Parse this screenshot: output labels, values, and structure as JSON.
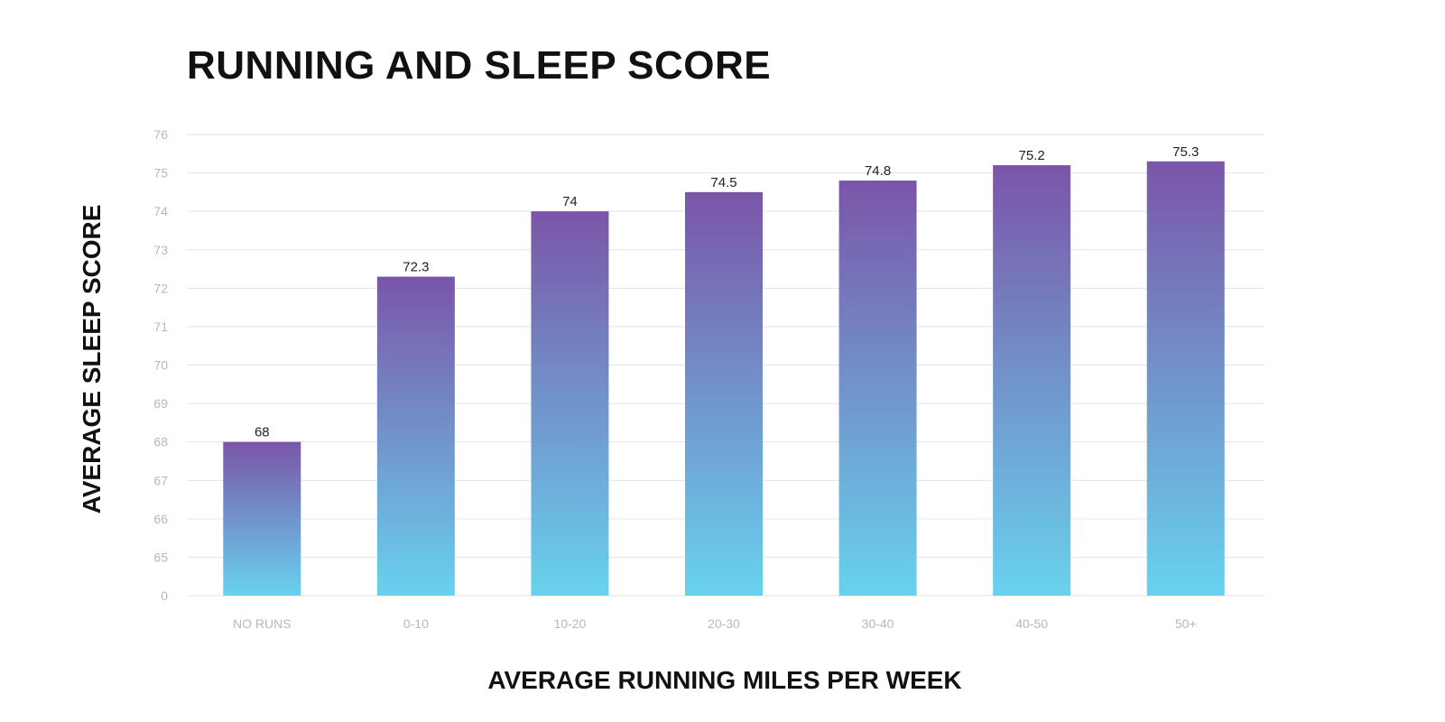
{
  "chart_data": {
    "type": "bar",
    "title": "RUNNING AND SLEEP SCORE",
    "xlabel": "AVERAGE RUNNING MILES PER WEEK",
    "ylabel": "AVERAGE SLEEP SCORE",
    "categories": [
      "NO RUNS",
      "0-10",
      "10-20",
      "20-30",
      "30-40",
      "40-50",
      "50+"
    ],
    "values": [
      68,
      72.3,
      74,
      74.5,
      74.8,
      75.2,
      75.3
    ],
    "value_labels": [
      "68",
      "72.3",
      "74",
      "74.5",
      "74.8",
      "75.2",
      "75.3"
    ],
    "yticks": [
      "0",
      "65",
      "66",
      "67",
      "68",
      "69",
      "70",
      "71",
      "72",
      "73",
      "74",
      "75",
      "76"
    ],
    "ylim": [
      64,
      76
    ],
    "axis_break": "tick labels jump from 0 to 65",
    "grid": true,
    "legend": "none",
    "colors": {
      "bar_top": "#7a55a8",
      "bar_bottom": "#68d2ee",
      "grid": "#e3e3e3",
      "tick_text": "#b8b8b8"
    }
  }
}
